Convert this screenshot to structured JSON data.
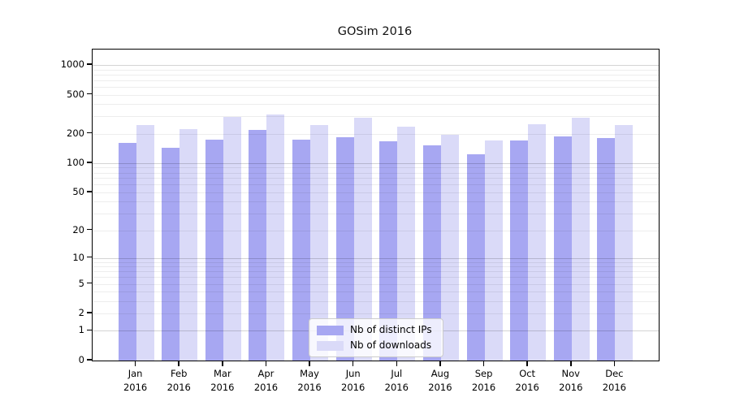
{
  "chart_data": {
    "type": "bar",
    "title": "GOSim 2016",
    "y_scale": "log1p",
    "y_ticks": [
      0,
      1,
      2,
      5,
      10,
      20,
      50,
      100,
      200,
      500,
      1000
    ],
    "y_major_gridlines": [
      1,
      10,
      100,
      1000
    ],
    "ylim": [
      0,
      1400
    ],
    "grid": "on",
    "legend_position": "lower-center",
    "categories": [
      "Jan",
      "Feb",
      "Mar",
      "Apr",
      "May",
      "Jun",
      "Jul",
      "Aug",
      "Sep",
      "Oct",
      "Nov",
      "Dec"
    ],
    "x_tick_sub": "2016",
    "series": [
      {
        "name": "Nb of distinct IPs",
        "color": "#a7a7f2",
        "values": [
          162,
          143,
          175,
          218,
          175,
          185,
          168,
          153,
          122,
          172,
          187,
          180
        ]
      },
      {
        "name": "Nb of downloads",
        "color": "#dadaf8",
        "values": [
          244,
          222,
          296,
          315,
          246,
          291,
          236,
          195,
          171,
          250,
          290,
          244
        ]
      }
    ]
  }
}
